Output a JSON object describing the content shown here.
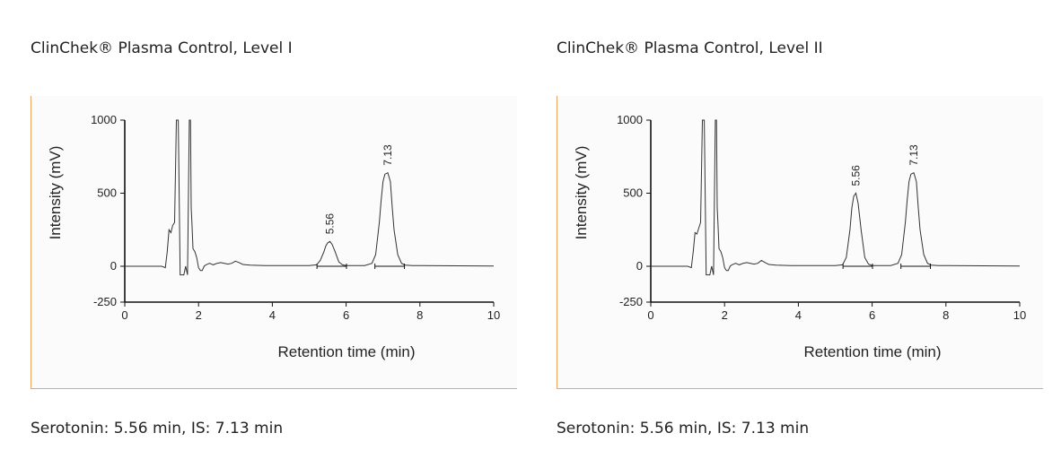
{
  "chart_data": [
    {
      "type": "line",
      "title": "ClinChek® Plasma Control, Level I",
      "caption": "Serotonin: 5.56 min, IS: 7.13 min",
      "xlabel": "Retention time (min)",
      "ylabel": "Intensity (mV)",
      "xlim": [
        0,
        10
      ],
      "ylim": [
        -250,
        1000
      ],
      "xticks": [
        "0",
        "2",
        "4",
        "6",
        "8",
        "10"
      ],
      "yticks": [
        "1000",
        "500",
        "0",
        "-250"
      ],
      "series": [
        {
          "x": [
            0,
            1.0,
            1.1,
            1.15,
            1.2,
            1.25,
            1.3,
            1.35,
            1.4,
            1.45,
            1.48,
            1.5,
            1.52,
            1.55,
            1.6,
            1.65,
            1.7,
            1.75,
            1.78,
            1.8,
            1.82,
            1.85,
            1.9,
            1.95,
            2.0,
            2.05,
            2.1,
            2.15,
            2.2,
            2.3,
            2.4,
            2.5,
            2.6,
            2.7,
            2.8,
            2.9,
            3.0,
            3.1,
            3.2,
            3.4,
            3.6,
            3.8,
            4.0,
            4.5,
            5.0,
            5.2,
            5.3,
            5.4,
            5.45,
            5.5,
            5.56,
            5.62,
            5.7,
            5.8,
            5.9,
            6.0,
            6.5,
            6.7,
            6.8,
            6.9,
            6.95,
            7.0,
            7.05,
            7.13,
            7.2,
            7.25,
            7.3,
            7.4,
            7.5,
            7.6,
            7.8,
            8.0,
            9.0,
            10.0
          ],
          "y": [
            0,
            0,
            -10,
            100,
            250,
            230,
            280,
            300,
            1000,
            1000,
            400,
            -60,
            -60,
            -60,
            -60,
            0,
            -60,
            1000,
            1000,
            400,
            300,
            120,
            100,
            60,
            -10,
            -30,
            -30,
            0,
            10,
            20,
            10,
            20,
            25,
            20,
            15,
            20,
            35,
            25,
            12,
            8,
            6,
            5,
            5,
            5,
            5,
            10,
            40,
            100,
            140,
            160,
            170,
            150,
            100,
            30,
            10,
            5,
            5,
            20,
            80,
            300,
            450,
            580,
            630,
            640,
            580,
            400,
            250,
            80,
            20,
            8,
            5,
            5,
            3,
            2
          ]
        }
      ],
      "peak_labels": [
        {
          "x": 5.56,
          "y": 170,
          "text": "5.56"
        },
        {
          "x": 7.13,
          "y": 640,
          "text": "7.13"
        }
      ]
    },
    {
      "type": "line",
      "title": "ClinChek® Plasma Control, Level II",
      "caption": "Serotonin: 5.56 min, IS: 7.13 min",
      "xlabel": "Retention time (min)",
      "ylabel": "Intensity (mV)",
      "xlim": [
        0,
        10
      ],
      "ylim": [
        -250,
        1000
      ],
      "xticks": [
        "0",
        "2",
        "4",
        "6",
        "8",
        "10"
      ],
      "yticks": [
        "1000",
        "500",
        "0",
        "-250"
      ],
      "series": [
        {
          "x": [
            0,
            1.0,
            1.1,
            1.15,
            1.2,
            1.25,
            1.3,
            1.35,
            1.4,
            1.45,
            1.48,
            1.5,
            1.52,
            1.55,
            1.6,
            1.65,
            1.7,
            1.75,
            1.78,
            1.8,
            1.82,
            1.85,
            1.9,
            1.95,
            2.0,
            2.05,
            2.1,
            2.15,
            2.2,
            2.3,
            2.4,
            2.5,
            2.6,
            2.7,
            2.8,
            2.9,
            3.0,
            3.1,
            3.2,
            3.4,
            3.6,
            3.8,
            4.0,
            4.5,
            5.0,
            5.2,
            5.3,
            5.4,
            5.45,
            5.5,
            5.56,
            5.62,
            5.7,
            5.8,
            5.9,
            6.0,
            6.5,
            6.7,
            6.8,
            6.9,
            6.95,
            7.0,
            7.05,
            7.13,
            7.2,
            7.25,
            7.3,
            7.4,
            7.5,
            7.6,
            7.8,
            8.0,
            9.0,
            10.0
          ],
          "y": [
            0,
            0,
            -10,
            100,
            230,
            220,
            260,
            300,
            1000,
            1000,
            400,
            -60,
            -60,
            -60,
            -60,
            0,
            -60,
            1000,
            1000,
            400,
            300,
            120,
            100,
            60,
            -10,
            -30,
            -30,
            0,
            10,
            20,
            10,
            20,
            25,
            20,
            15,
            20,
            40,
            25,
            12,
            8,
            6,
            5,
            5,
            5,
            5,
            10,
            60,
            250,
            400,
            480,
            500,
            430,
            250,
            60,
            15,
            5,
            5,
            20,
            80,
            300,
            450,
            580,
            630,
            640,
            580,
            400,
            250,
            80,
            20,
            8,
            5,
            5,
            3,
            2
          ]
        }
      ],
      "peak_labels": [
        {
          "x": 5.56,
          "y": 500,
          "text": "5.56"
        },
        {
          "x": 7.13,
          "y": 640,
          "text": "7.13"
        }
      ]
    }
  ]
}
